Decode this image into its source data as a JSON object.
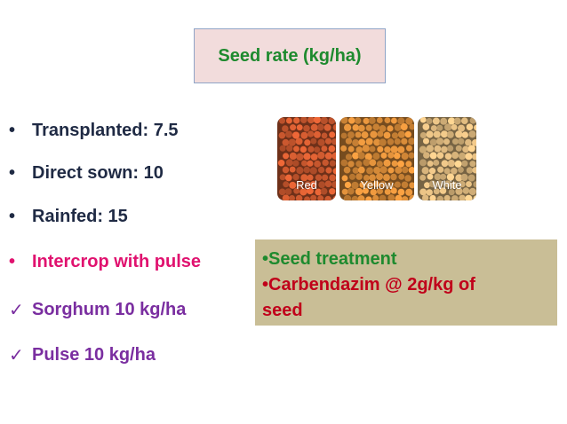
{
  "slide": {
    "title": "Seed rate (kg/ha)",
    "bullets": [
      {
        "text": "Transplanted: 7.5",
        "marker": "dot",
        "color": "#1f2a44"
      },
      {
        "text": "Direct sown: 10",
        "marker": "dot",
        "color": "#1f2a44"
      },
      {
        "text": "Rainfed: 15",
        "marker": "dot",
        "color": "#1f2a44"
      },
      {
        "text": "Intercrop with pulse",
        "marker": "dot",
        "color": "#e0126f"
      },
      {
        "text": "Sorghum 10 kg/ha",
        "marker": "check",
        "color": "#7a2ea0"
      },
      {
        "text": "Pulse 10 kg/ha",
        "marker": "check",
        "color": "#7a2ea0"
      }
    ],
    "seed_image": {
      "labels": [
        "Red",
        "Yellow",
        "White"
      ],
      "colors": [
        "#c8572e",
        "#d68a38",
        "#d9b57c"
      ]
    },
    "treatment": {
      "line1": "•Seed treatment",
      "line1_color": "#1e8a2e",
      "line2a": "•Carbendazim @ 2g/kg of",
      "line2b": "seed",
      "line2_color": "#c0001a"
    }
  }
}
